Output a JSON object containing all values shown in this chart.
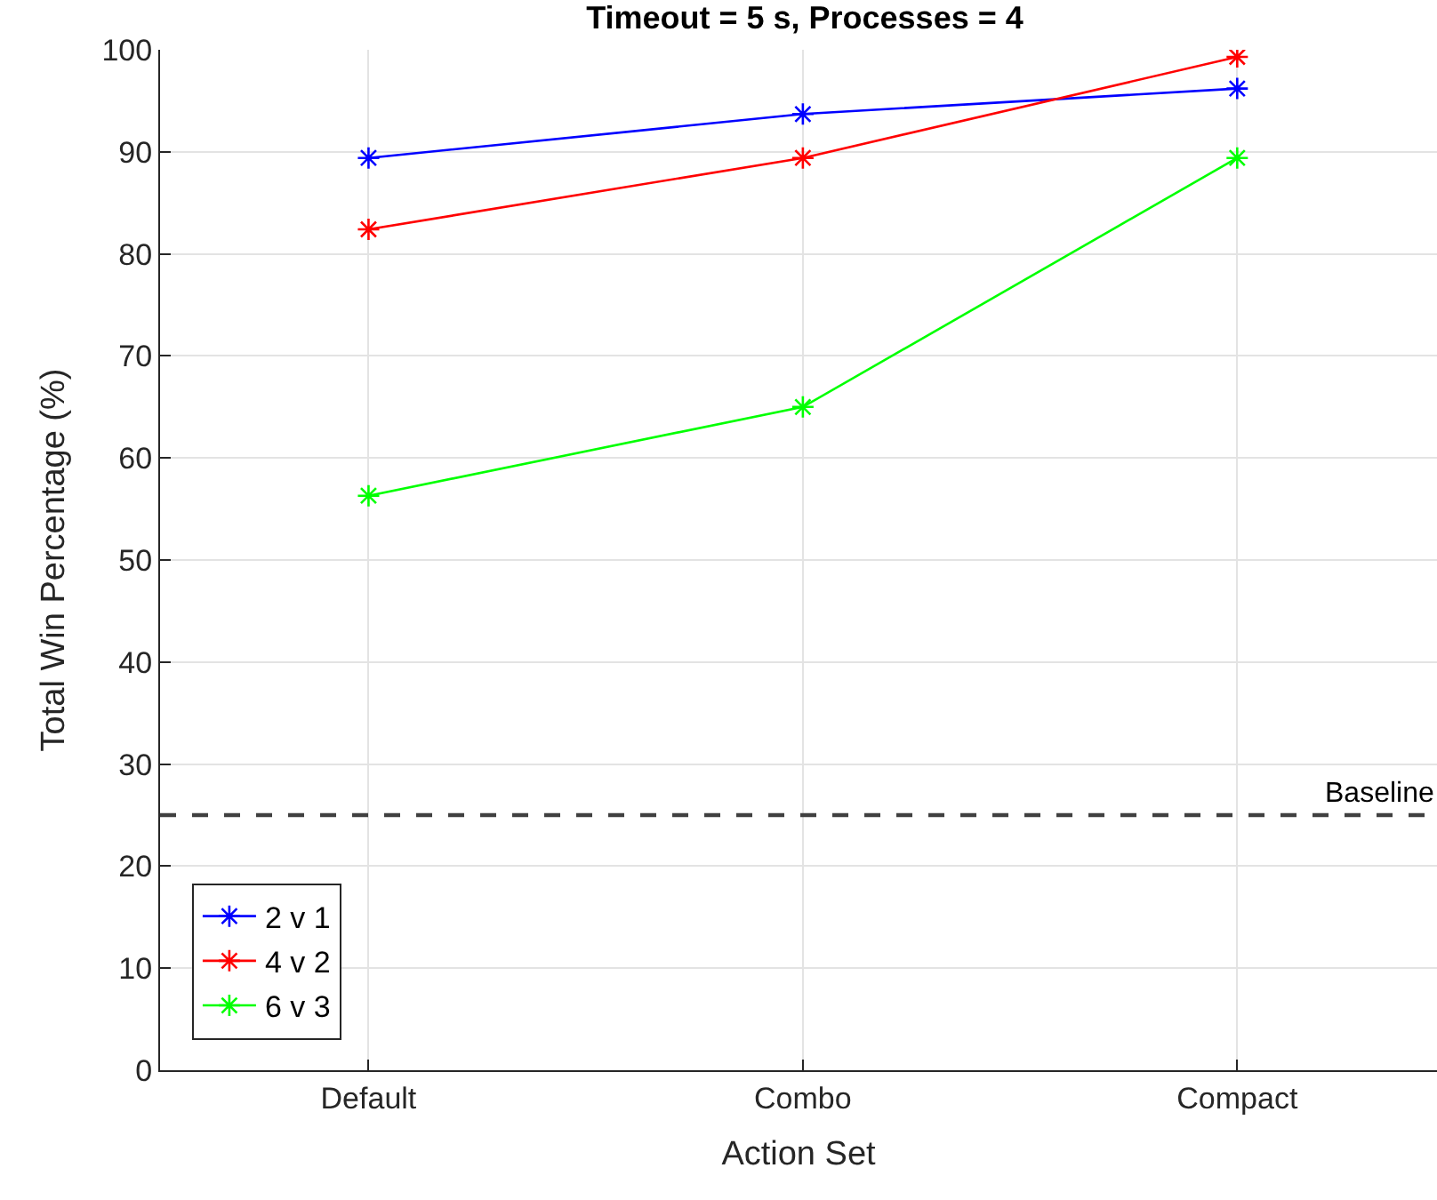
{
  "chart_data": {
    "type": "line",
    "title": "Timeout = 5 s, Processes = 4",
    "xlabel": "Action Set",
    "ylabel": "Total Win Percentage (%)",
    "categories": [
      "Default",
      "Combo",
      "Compact"
    ],
    "series": [
      {
        "name": "2 v 1",
        "color": "#0000ff",
        "values": [
          89.4,
          93.7,
          96.2
        ]
      },
      {
        "name": "4 v 2",
        "color": "#ff0000",
        "values": [
          82.4,
          89.4,
          99.3
        ]
      },
      {
        "name": "6 v 3",
        "color": "#00ff00",
        "values": [
          56.3,
          65.0,
          89.4
        ]
      }
    ],
    "ylim": [
      0,
      100
    ],
    "yticks": [
      0,
      10,
      20,
      30,
      40,
      50,
      60,
      70,
      80,
      90,
      100
    ],
    "ref_lines": [
      {
        "axis": "y",
        "value": 25,
        "label": "Baseline",
        "color": "#404040",
        "line_style": "dashed"
      }
    ],
    "grid": true,
    "legend": "bottom left",
    "marker": "cross",
    "line_style": "solid"
  }
}
